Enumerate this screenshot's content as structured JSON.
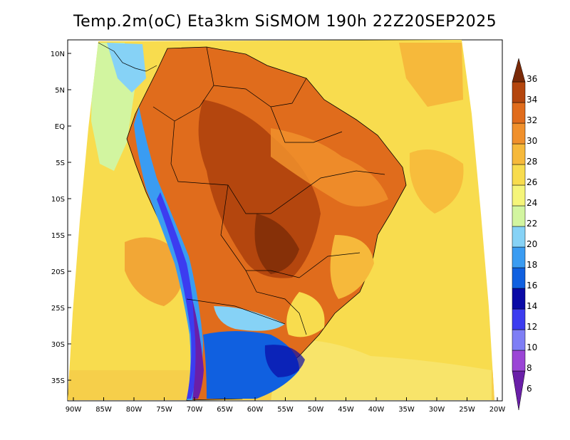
{
  "title": "Temp.2m(oC) Eta3km SiSMOM 190h 22Z20SEP2025",
  "lat_labels": [
    "10N",
    "5N",
    "EQ",
    "5S",
    "10S",
    "15S",
    "20S",
    "25S",
    "30S",
    "35S"
  ],
  "lon_labels": [
    "90W",
    "85W",
    "80W",
    "75W",
    "70W",
    "65W",
    "60W",
    "55W",
    "50W",
    "45W",
    "40W",
    "35W",
    "30W",
    "25W",
    "20W"
  ],
  "colorbar": {
    "levels": [
      "6",
      "8",
      "10",
      "12",
      "14",
      "16",
      "18",
      "20",
      "22",
      "24",
      "26",
      "28",
      "30",
      "32",
      "34",
      "36"
    ],
    "colors": [
      "#6a1fa8",
      "#9b45d6",
      "#7e7ef5",
      "#3c3cf0",
      "#0a0aa6",
      "#1060e0",
      "#3a9cf2",
      "#86d2f6",
      "#d2f5a0",
      "#f5f57a",
      "#f8dc4e",
      "#f6b93b",
      "#f0902c",
      "#e06c1c",
      "#b4460e",
      "#7a2a08"
    ]
  }
}
